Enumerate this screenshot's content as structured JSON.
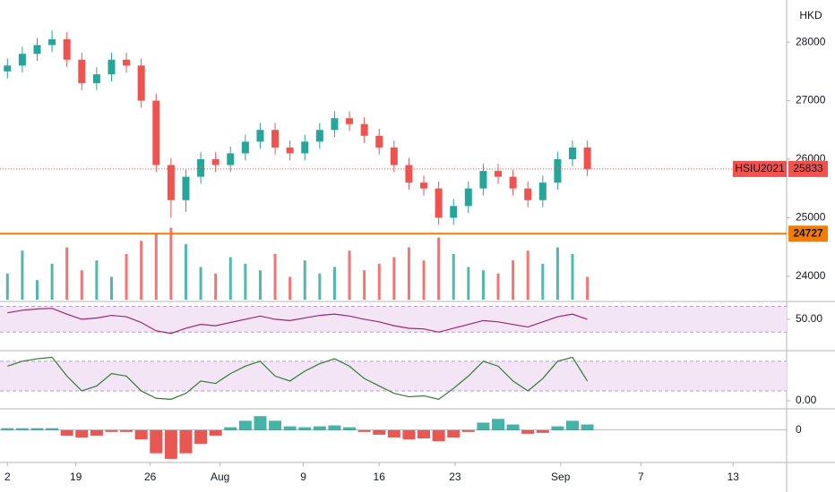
{
  "chart_data": {
    "type": "candlestick",
    "currency": "HKD",
    "symbol": "HSIU2021",
    "open": [
      27500,
      27600,
      27800,
      27950,
      28050,
      27700,
      27300,
      27450,
      27700,
      27600,
      27000,
      25900,
      25300,
      25700,
      26000,
      25900,
      26100,
      26300,
      26500,
      26200,
      26100,
      26300,
      26500,
      26700,
      26600,
      26400,
      26200,
      25900,
      25600,
      25500,
      25000,
      25200,
      25500,
      25800,
      25700,
      25500,
      25300,
      25600,
      26000,
      26200
    ],
    "high": [
      27720,
      27920,
      28070,
      28200,
      28170,
      27820,
      27570,
      27820,
      27820,
      27720,
      27120,
      26020,
      25820,
      26120,
      26120,
      26220,
      26420,
      26620,
      26620,
      26320,
      26420,
      26620,
      26820,
      26820,
      26720,
      26520,
      26320,
      26020,
      25720,
      25620,
      25320,
      25620,
      25920,
      25920,
      25820,
      25620,
      25720,
      26120,
      26320,
      26320
    ],
    "low": [
      27380,
      27480,
      27680,
      27830,
      27580,
      27180,
      27180,
      27330,
      27480,
      26880,
      25780,
      25000,
      25100,
      25580,
      25780,
      25780,
      25980,
      26180,
      26080,
      25980,
      25980,
      26180,
      26380,
      26480,
      26280,
      26080,
      25780,
      25480,
      25380,
      24880,
      24880,
      25080,
      25380,
      25580,
      25380,
      25180,
      25180,
      25480,
      25880,
      25713
    ],
    "close": [
      27600,
      27800,
      27950,
      28050,
      27700,
      27300,
      27450,
      27700,
      27600,
      27000,
      25900,
      25300,
      25700,
      26000,
      25900,
      26100,
      26300,
      26500,
      26200,
      26100,
      26300,
      26500,
      26700,
      26600,
      26400,
      26200,
      25900,
      25600,
      25500,
      25000,
      25200,
      25500,
      25800,
      25700,
      25500,
      25300,
      25600,
      26000,
      26200,
      25833
    ],
    "volume": [
      40,
      75,
      30,
      55,
      80,
      45,
      60,
      35,
      70,
      90,
      100,
      110,
      85,
      50,
      40,
      65,
      55,
      45,
      70,
      35,
      60,
      40,
      50,
      75,
      45,
      55,
      65,
      80,
      60,
      95,
      70,
      50,
      45,
      40,
      60,
      75,
      55,
      80,
      70,
      35
    ],
    "volume_lim": [
      0,
      130
    ],
    "up_color": "#26a69a",
    "down_color": "#ef5350",
    "level": 24727,
    "level_color": "#f57c00",
    "ylim": [
      23600,
      28720
    ],
    "yticks": [
      24000,
      25000,
      26000,
      27000,
      28000
    ],
    "xlim": [
      -0.5,
      52.4
    ],
    "xticks": [
      {
        "value": 0,
        "label": "2"
      },
      {
        "value": 4.6,
        "label": "19"
      },
      {
        "value": 9.6,
        "label": "26"
      },
      {
        "value": 14.3,
        "label": "Aug"
      },
      {
        "value": 19.9,
        "label": "9"
      },
      {
        "value": 25,
        "label": "16"
      },
      {
        "value": 30.1,
        "label": "23"
      },
      {
        "value": 37.2,
        "label": "Sep"
      },
      {
        "value": 42.6,
        "label": "7"
      },
      {
        "value": 48.8,
        "label": "13"
      }
    ],
    "rsi": {
      "values": [
        60,
        64,
        66,
        67,
        58,
        50,
        52,
        56,
        54,
        45,
        32,
        28,
        36,
        42,
        40,
        45,
        50,
        55,
        50,
        48,
        52,
        56,
        58,
        55,
        50,
        46,
        40,
        36,
        35,
        30,
        36,
        42,
        48,
        46,
        42,
        38,
        46,
        54,
        58,
        50
      ],
      "ylim": [
        4,
        73.5
      ],
      "yticks": [
        {
          "value": 50,
          "label": "50.00"
        }
      ],
      "band": [
        30,
        70
      ],
      "color": "#9c2770"
    },
    "stoch": {
      "values": [
        70,
        80,
        85,
        88,
        50,
        20,
        30,
        55,
        50,
        20,
        5,
        3,
        15,
        40,
        35,
        55,
        70,
        80,
        50,
        40,
        60,
        75,
        85,
        70,
        45,
        30,
        15,
        8,
        10,
        3,
        25,
        50,
        80,
        70,
        40,
        20,
        45,
        80,
        88,
        40
      ],
      "ylim": [
        -12.7,
        96
      ],
      "yticks": [
        {
          "value": 0,
          "label": "0.00"
        }
      ],
      "band": [
        20,
        80
      ],
      "color": "#2e7d32"
    },
    "macd_hist": {
      "values": [
        20,
        20,
        20,
        20,
        -60,
        -80,
        -60,
        -20,
        -20,
        -100,
        -250,
        -310,
        -250,
        -150,
        -60,
        30,
        100,
        150,
        100,
        40,
        30,
        40,
        50,
        30,
        -20,
        -50,
        -80,
        -100,
        -90,
        -120,
        -80,
        -20,
        80,
        120,
        60,
        -40,
        -30,
        40,
        100,
        60
      ],
      "ylim": [
        -330,
        200
      ],
      "yticks": [
        0
      ],
      "up_color": "#26a69a",
      "down_color": "#e53935"
    }
  }
}
